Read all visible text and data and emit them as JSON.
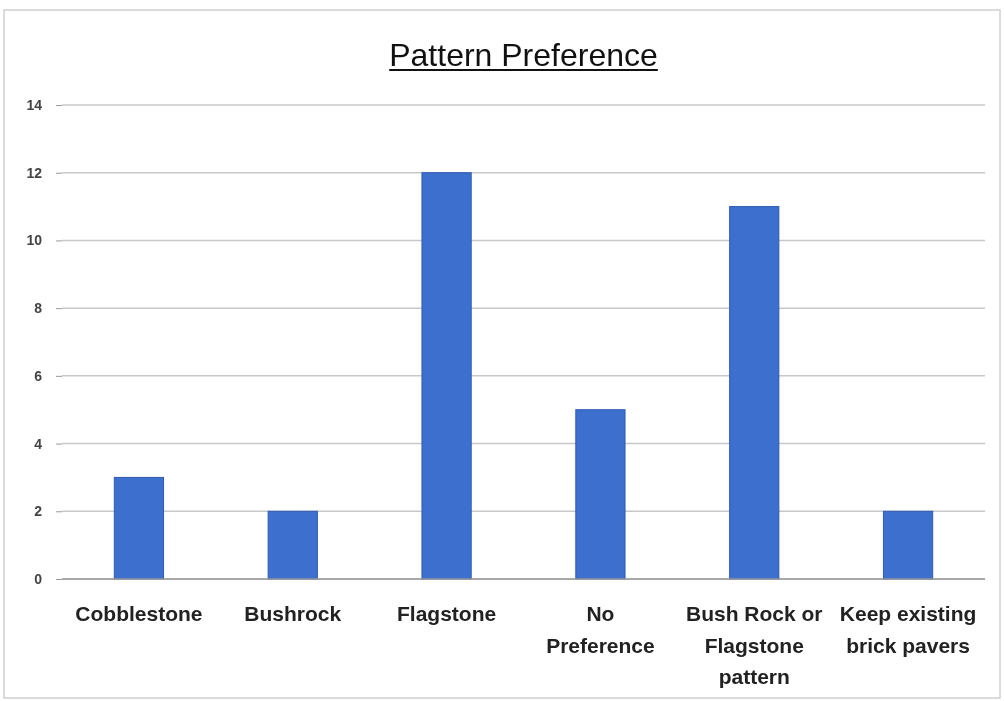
{
  "chart_data": {
    "type": "bar",
    "title": "Pattern Preference",
    "categories": [
      "Cobblestone",
      "Bushrock",
      "Flagstone",
      "No Preference",
      "Bush Rock or Flagstone pattern",
      "Keep existing brick pavers"
    ],
    "values": [
      3,
      2,
      12,
      5,
      11,
      2
    ],
    "color": "#3d6fcf",
    "ylim": [
      0,
      14
    ],
    "yticks": [
      0,
      2,
      4,
      6,
      8,
      10,
      12,
      14
    ],
    "grid": "y"
  }
}
